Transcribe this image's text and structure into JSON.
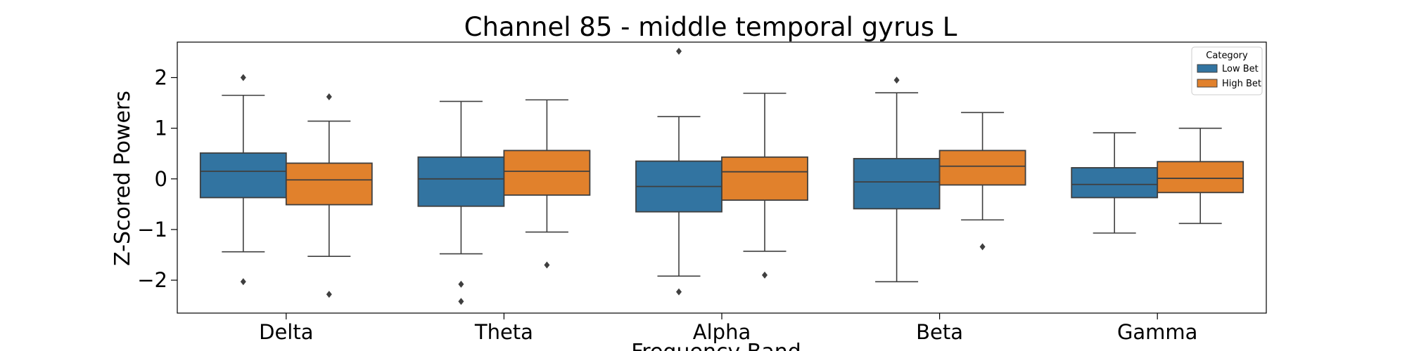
{
  "chart_data": {
    "type": "box",
    "title": "Channel 85 - middle temporal gyrus L",
    "xlabel": "Frequency Band",
    "ylabel": "Z-Scored Powers",
    "categories": [
      "Delta",
      "Theta",
      "Alpha",
      "Beta",
      "Gamma"
    ],
    "ylim": [
      -2.65,
      2.7
    ],
    "yticks": [
      -2,
      -1,
      0,
      1,
      2
    ],
    "ytick_labels": [
      "−2",
      "−1",
      "0",
      "1",
      "2"
    ],
    "legend": {
      "title": "Category",
      "position": "top-right"
    },
    "series": [
      {
        "name": "Low Bet",
        "color": "#3274a1",
        "boxes": [
          {
            "whisker_low": -1.44,
            "q1": -0.37,
            "median": 0.15,
            "q3": 0.51,
            "whisker_high": 1.65,
            "outliers": [
              2.0,
              -2.03
            ]
          },
          {
            "whisker_low": -1.48,
            "q1": -0.54,
            "median": 0.0,
            "q3": 0.43,
            "whisker_high": 1.53,
            "outliers": [
              -2.08,
              -2.42
            ]
          },
          {
            "whisker_low": -1.92,
            "q1": -0.65,
            "median": -0.15,
            "q3": 0.35,
            "whisker_high": 1.23,
            "outliers": [
              2.52,
              -2.23
            ]
          },
          {
            "whisker_low": -2.03,
            "q1": -0.59,
            "median": -0.06,
            "q3": 0.4,
            "whisker_high": 1.7,
            "outliers": [
              1.95
            ]
          },
          {
            "whisker_low": -1.07,
            "q1": -0.37,
            "median": -0.11,
            "q3": 0.22,
            "whisker_high": 0.91,
            "outliers": []
          }
        ]
      },
      {
        "name": "High Bet",
        "color": "#e1812c",
        "boxes": [
          {
            "whisker_low": -1.53,
            "q1": -0.51,
            "median": -0.02,
            "q3": 0.31,
            "whisker_high": 1.14,
            "outliers": [
              1.62,
              -2.28
            ]
          },
          {
            "whisker_low": -1.05,
            "q1": -0.32,
            "median": 0.15,
            "q3": 0.56,
            "whisker_high": 1.56,
            "outliers": [
              -1.7
            ]
          },
          {
            "whisker_low": -1.43,
            "q1": -0.42,
            "median": 0.14,
            "q3": 0.43,
            "whisker_high": 1.69,
            "outliers": [
              -1.9
            ]
          },
          {
            "whisker_low": -0.81,
            "q1": -0.12,
            "median": 0.25,
            "q3": 0.56,
            "whisker_high": 1.31,
            "outliers": [
              -1.34
            ]
          },
          {
            "whisker_low": -0.88,
            "q1": -0.27,
            "median": 0.01,
            "q3": 0.34,
            "whisker_high": 1.0,
            "outliers": []
          }
        ]
      }
    ]
  }
}
